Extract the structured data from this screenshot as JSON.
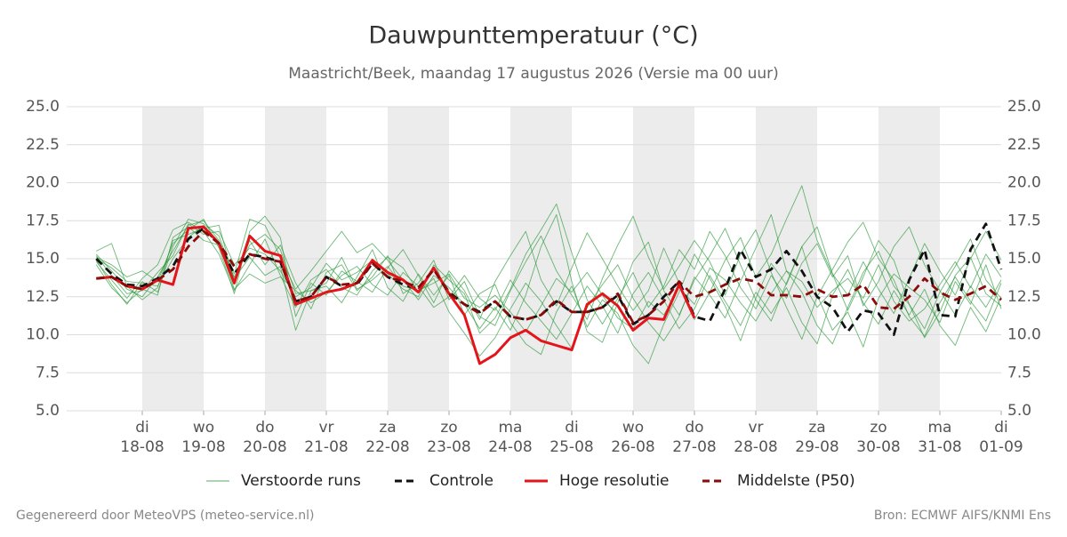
{
  "chart_data": {
    "type": "line",
    "title": "Dauwpunttemperatuur (°C)",
    "subtitle": "Maastricht/Beek, maandag 17 augustus 2026 (Versie ma 00 uur)",
    "footer_left": "Gegenereerd door MeteoVPS (meteo-service.nl)",
    "footer_right": "Bron: ECMWF AIFS/KNMI Ens",
    "xlim": [
      -0.232,
      15
    ],
    "ylim": [
      5,
      25
    ],
    "yticks": [
      {
        "value": 5,
        "label": "5.0"
      },
      {
        "value": 7.5,
        "label": "7.5"
      },
      {
        "value": 10,
        "label": "10.0"
      },
      {
        "value": 12.5,
        "label": "12.5"
      },
      {
        "value": 15,
        "label": "15.0"
      },
      {
        "value": 17.5,
        "label": "17.5"
      },
      {
        "value": 20,
        "label": "20.0"
      },
      {
        "value": 22.5,
        "label": "22.5"
      },
      {
        "value": 25,
        "label": "25.0"
      }
    ],
    "xticks": [
      {
        "value": 1,
        "label": "18-08"
      },
      {
        "value": 2,
        "label": "19-08"
      },
      {
        "value": 3,
        "label": "20-08"
      },
      {
        "value": 4,
        "label": "21-08"
      },
      {
        "value": 5,
        "label": "22-08"
      },
      {
        "value": 6,
        "label": "23-08"
      },
      {
        "value": 7,
        "label": "24-08"
      },
      {
        "value": 8,
        "label": "25-08"
      },
      {
        "value": 9,
        "label": "26-08"
      },
      {
        "value": 10,
        "label": "27-08"
      },
      {
        "value": 11,
        "label": "28-08"
      },
      {
        "value": 12,
        "label": "29-08"
      },
      {
        "value": 13,
        "label": "30-08"
      },
      {
        "value": 14,
        "label": "31-08"
      },
      {
        "value": 15,
        "label": "01-09"
      }
    ],
    "xtick_days": [
      "di",
      "wo",
      "do",
      "vr",
      "za",
      "zo",
      "ma",
      "di",
      "wo",
      "do",
      "vr",
      "za",
      "zo",
      "ma",
      "di"
    ],
    "grid": true,
    "x": [
      0.25,
      0.5,
      0.75,
      1,
      1.25,
      1.5,
      1.75,
      2,
      2.25,
      2.5,
      2.75,
      3,
      3.25,
      3.5,
      3.75,
      4,
      4.25,
      4.5,
      4.75,
      5,
      5.25,
      5.5,
      5.75,
      6,
      6.25,
      6.5,
      6.75,
      7,
      7.25,
      7.5,
      7.75,
      8,
      8.25,
      8.5,
      8.75,
      9,
      9.25,
      9.5,
      9.75,
      10,
      10.25,
      10.5,
      10.75,
      11,
      11.25,
      11.5,
      11.75,
      12,
      12.25,
      12.5,
      12.75,
      13,
      13.25,
      13.5,
      13.75,
      14,
      14.25,
      14.5,
      14.75,
      15
    ],
    "ensemble": {
      "name": "Verstoorde runs",
      "color": "#2e9a3c",
      "members": [
        [
          15.3,
          14.2,
          13.0,
          12.5,
          13.8,
          15.5,
          17.2,
          17.5,
          16.2,
          14.0,
          17.6,
          17.2,
          15.1,
          13.0,
          14.2,
          15.5,
          16.8,
          15.4,
          16.0,
          14.9,
          13.6,
          12.3,
          13.9,
          13.1,
          12.0,
          10.4,
          11.8,
          10.3,
          12.6,
          15.8,
          17.9,
          13.5,
          10.2,
          9.5,
          12.1,
          14.8,
          16.1,
          12.9,
          11.3,
          13.6,
          15.2,
          17.0,
          14.6,
          12.3,
          10.9,
          13.4,
          15.8,
          17.1,
          14.0,
          11.6,
          13.8,
          16.2,
          14.9,
          12.0,
          9.8,
          11.5,
          13.9,
          15.1,
          12.7,
          11.9
        ],
        [
          14.8,
          13.6,
          12.4,
          13.7,
          14.6,
          16.9,
          17.4,
          16.8,
          15.3,
          12.9,
          14.6,
          16.3,
          13.9,
          11.8,
          13.6,
          14.3,
          13.1,
          12.6,
          14.2,
          15.1,
          14.4,
          12.8,
          13.7,
          11.5,
          10.1,
          8.6,
          9.8,
          11.7,
          13.4,
          12.2,
          10.6,
          9.1,
          11.8,
          13.3,
          14.6,
          12.4,
          10.8,
          9.6,
          11.2,
          13.8,
          12.6,
          11.1,
          13.5,
          15.7,
          17.9,
          14.2,
          12.8,
          10.6,
          9.4,
          11.8,
          14.1,
          15.5,
          13.2,
          12.0,
          10.4,
          12.8,
          14.5,
          16.3,
          13.6,
          12.4
        ],
        [
          15.5,
          16.0,
          13.2,
          12.3,
          13.1,
          16.2,
          16.6,
          17.0,
          17.2,
          13.5,
          16.2,
          14.6,
          15.9,
          13.4,
          11.7,
          14.1,
          14.6,
          12.9,
          13.8,
          15.2,
          12.7,
          13.4,
          14.9,
          12.3,
          13.5,
          11.2,
          10.6,
          12.9,
          14.8,
          16.5,
          14.2,
          12.6,
          11.0,
          13.7,
          15.9,
          17.8,
          15.1,
          13.0,
          14.5,
          16.2,
          14.8,
          12.6,
          15.3,
          16.9,
          14.1,
          11.8,
          9.7,
          12.5,
          14.3,
          16.1,
          17.4,
          15.0,
          13.6,
          11.2,
          9.9,
          12.1,
          13.8,
          12.2,
          10.9,
          13.4
        ],
        [
          14.9,
          13.3,
          12.0,
          13.5,
          12.8,
          15.8,
          17.6,
          17.3,
          16.5,
          13.7,
          15.1,
          13.9,
          14.5,
          10.3,
          12.9,
          13.2,
          12.1,
          13.8,
          15.6,
          13.1,
          12.2,
          14.0,
          12.6,
          13.9,
          11.3,
          12.7,
          13.3,
          10.8,
          9.4,
          8.7,
          11.5,
          13.2,
          10.5,
          12.3,
          11.4,
          9.3,
          8.1,
          10.7,
          12.8,
          15.3,
          13.7,
          11.9,
          9.6,
          12.4,
          14.7,
          13.3,
          15.8,
          12.6,
          10.3,
          11.5,
          9.2,
          12.4,
          14.0,
          13.1,
          12.3,
          10.8,
          13.5,
          12.0,
          14.6,
          11.7
        ],
        [
          15.1,
          14.6,
          13.8,
          14.2,
          13.5,
          16.0,
          16.9,
          17.6,
          15.7,
          12.7,
          16.8,
          17.8,
          16.4,
          11.2,
          13.4,
          12.6,
          14.2,
          13.5,
          12.8,
          14.4,
          15.6,
          13.9,
          12.1,
          14.2,
          12.9,
          11.0,
          13.5,
          15.2,
          16.8,
          13.6,
          11.9,
          14.4,
          16.7,
          15.0,
          13.2,
          11.6,
          12.9,
          15.7,
          13.4,
          11.0,
          12.8,
          14.9,
          16.4,
          13.8,
          15.3,
          17.6,
          19.8,
          16.2,
          14.0,
          12.6,
          14.8,
          13.0,
          11.4,
          13.7,
          16.0,
          14.2,
          12.6,
          15.0,
          16.8,
          14.9
        ],
        [
          14.6,
          13.1,
          12.1,
          13.0,
          12.6,
          16.4,
          17.1,
          16.2,
          15.9,
          13.0,
          14.0,
          13.4,
          13.8,
          12.9,
          12.1,
          12.8,
          13.9,
          14.5,
          13.3,
          12.6,
          14.1,
          13.2,
          11.8,
          12.5,
          13.9,
          12.4,
          11.6,
          13.6,
          12.1,
          10.9,
          9.7,
          11.4,
          13.2,
          11.9,
          10.1,
          12.7,
          14.1,
          12.3,
          10.4,
          11.7,
          13.9,
          12.2,
          10.6,
          12.8,
          11.4,
          13.1,
          10.8,
          9.4,
          12.6,
          14.3,
          12.1,
          10.7,
          12.9,
          11.3,
          13.0,
          10.6,
          9.3,
          11.8,
          10.2,
          12.5
        ],
        [
          15.2,
          13.9,
          12.7,
          12.9,
          14.1,
          15.2,
          17.3,
          16.6,
          16.8,
          14.6,
          15.7,
          15.3,
          14.2,
          12.5,
          13.1,
          14.7,
          13.6,
          14.1,
          14.9,
          14.0,
          13.0,
          12.5,
          14.6,
          13.6,
          12.7,
          10.1,
          11.1,
          13.0,
          15.3,
          16.9,
          18.6,
          15.4,
          12.3,
          10.7,
          12.4,
          14.1,
          11.8,
          13.2,
          15.6,
          14.3,
          16.8,
          15.2,
          13.1,
          11.7,
          13.9,
          12.4,
          14.7,
          16.0,
          13.8,
          15.2,
          11.9,
          13.5,
          15.8,
          17.1,
          14.6,
          12.9,
          11.3,
          13.2,
          11.8,
          13.6
        ],
        [
          15.0,
          14.4,
          13.5,
          13.4,
          13.2,
          15.0,
          16.4,
          17.2,
          16.1,
          13.8,
          15.9,
          16.6,
          15.6,
          12.7,
          12.9,
          13.4,
          15.1,
          13.0,
          13.6,
          14.5,
          13.2,
          12.9,
          13.4,
          14.0,
          12.4,
          11.8,
          12.6,
          11.5,
          10.2,
          11.9,
          13.7,
          12.8,
          14.1,
          12.6,
          11.1,
          10.4,
          12.2,
          11.3,
          13.1,
          12.0,
          14.4,
          13.6,
          12.1,
          10.9,
          12.7,
          14.2,
          13.5,
          11.8,
          12.9,
          13.7,
          12.4,
          14.6,
          12.2,
          10.9,
          11.7,
          13.3,
          14.8,
          13.1,
          15.3,
          13.8
        ]
      ]
    },
    "series": [
      {
        "name": "Controle",
        "color": "#111111",
        "style": "dashed",
        "values": [
          15.0,
          14.0,
          13.3,
          13.2,
          13.7,
          14.5,
          16.3,
          17.0,
          16.0,
          14.0,
          15.3,
          15.1,
          14.8,
          12.2,
          12.5,
          13.8,
          13.2,
          13.3,
          14.7,
          13.8,
          13.3,
          13.0,
          14.3,
          12.8,
          12.0,
          11.5,
          12.2,
          11.2,
          11.0,
          11.3,
          12.2,
          11.5,
          11.5,
          11.8,
          12.6,
          10.7,
          11.3,
          12.5,
          13.5,
          11.2,
          10.9,
          13.0,
          15.6,
          13.8,
          14.3,
          15.5,
          14.2,
          12.5,
          11.8,
          10.2,
          11.6,
          11.4,
          10.0,
          13.6,
          15.6,
          11.3,
          11.2,
          15.6,
          17.3,
          14.3
        ]
      },
      {
        "name": "Hoge resolutie",
        "color": "#e3151b",
        "style": "solid",
        "values": [
          13.7,
          13.8,
          13.2,
          13.0,
          13.6,
          13.3,
          17.0,
          17.1,
          16.0,
          13.4,
          16.5,
          15.5,
          15.2,
          12.0,
          12.4,
          12.8,
          13.0,
          13.4,
          14.9,
          14.1,
          13.6,
          12.8,
          14.4,
          12.7,
          11.3,
          8.1,
          8.7,
          9.8,
          10.3,
          9.6,
          9.3,
          9.0,
          12.0,
          12.7,
          11.9,
          10.3,
          11.1,
          11.0,
          13.3,
          11.1,
          null,
          null,
          null,
          null,
          null,
          null,
          null,
          null,
          null,
          null,
          null,
          null,
          null,
          null,
          null,
          null,
          null,
          null,
          null,
          null
        ]
      },
      {
        "name": "Middelste (P50)",
        "color": "#8b0a0a",
        "style": "dashed",
        "values": [
          13.7,
          13.8,
          13.2,
          13.0,
          13.6,
          14.3,
          15.8,
          16.8,
          16.0,
          14.5,
          15.3,
          15.0,
          14.8,
          12.2,
          12.5,
          13.8,
          13.3,
          13.4,
          14.7,
          13.8,
          13.5,
          13.1,
          14.3,
          12.7,
          12.0,
          11.4,
          12.2,
          11.2,
          11.0,
          11.3,
          12.3,
          11.5,
          11.5,
          11.8,
          12.7,
          10.8,
          11.3,
          12.2,
          13.5,
          12.5,
          12.8,
          13.3,
          13.7,
          13.5,
          12.6,
          12.6,
          12.5,
          13.0,
          12.5,
          12.6,
          13.3,
          11.8,
          11.7,
          12.5,
          13.7,
          12.8,
          12.3,
          12.7,
          13.2,
          12.3
        ]
      }
    ]
  }
}
